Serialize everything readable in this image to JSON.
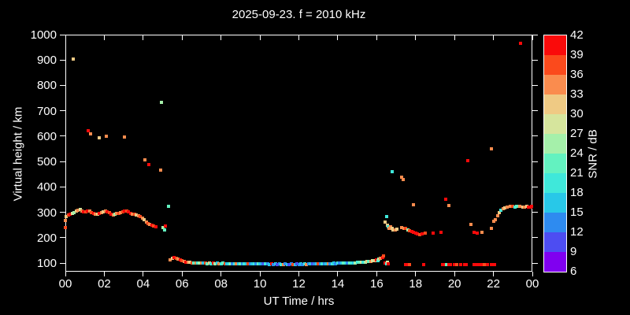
{
  "title": "2025-09-23. f = 2010 kHz",
  "chart_data": {
    "type": "scatter",
    "title": "2025-09-23. f = 2010 kHz",
    "xlabel": "UT Time / hrs",
    "ylabel": "Virtual height / km",
    "xlim": [
      0,
      24
    ],
    "ylim": [
      66,
      1000
    ],
    "grid": false,
    "background_color": "#000000",
    "axis_color": "#ffffff",
    "x_ticks": {
      "values": [
        0,
        2,
        4,
        6,
        8,
        10,
        12,
        14,
        16,
        18,
        20,
        22,
        24
      ],
      "labels": [
        "00",
        "02",
        "04",
        "06",
        "08",
        "10",
        "12",
        "14",
        "16",
        "18",
        "20",
        "22",
        "00"
      ]
    },
    "y_ticks": {
      "values": [
        100,
        200,
        300,
        400,
        500,
        600,
        700,
        800,
        900,
        1000
      ],
      "labels": [
        "100",
        "200",
        "300",
        "400",
        "500",
        "600",
        "700",
        "800",
        "900",
        "1000"
      ]
    },
    "colorbar": {
      "label": "SNR / dB",
      "tick_values": [
        6,
        9,
        12,
        15,
        18,
        21,
        24,
        27,
        30,
        33,
        36,
        39,
        42
      ],
      "bin_colors": [
        "#8000f0",
        "#4d4df2",
        "#2e8bf0",
        "#28c8e8",
        "#3fe8da",
        "#63f2c0",
        "#a5f0aa",
        "#d6e59d",
        "#efca84",
        "#fa8c4e",
        "#fb4a1c",
        "#fa0a0a"
      ]
    },
    "point_format": "[ut_hours, virtual_height_km, snr_bin_index (0 = 6-9 dB ... 11 = 39-42 dB)]",
    "points": [
      [
        0.0,
        240,
        10
      ],
      [
        0.02,
        268,
        9
      ],
      [
        0.05,
        283,
        8
      ],
      [
        0.15,
        288,
        10
      ],
      [
        0.25,
        291,
        11
      ],
      [
        0.35,
        295,
        7
      ],
      [
        0.45,
        300,
        6
      ],
      [
        0.55,
        304,
        8
      ],
      [
        0.65,
        308,
        9
      ],
      [
        0.75,
        310,
        7
      ],
      [
        0.85,
        306,
        9
      ],
      [
        0.95,
        302,
        11
      ],
      [
        1.05,
        303,
        10
      ],
      [
        1.15,
        306,
        11
      ],
      [
        1.25,
        304,
        9
      ],
      [
        1.35,
        299,
        10
      ],
      [
        1.45,
        295,
        11
      ],
      [
        1.55,
        293,
        9
      ],
      [
        1.65,
        294,
        8
      ],
      [
        1.75,
        297,
        11
      ],
      [
        1.85,
        300,
        9
      ],
      [
        1.95,
        303,
        8
      ],
      [
        2.05,
        304,
        9
      ],
      [
        2.15,
        303,
        11
      ],
      [
        2.25,
        298,
        10
      ],
      [
        2.35,
        292,
        11
      ],
      [
        2.45,
        290,
        9
      ],
      [
        2.55,
        292,
        6
      ],
      [
        2.65,
        295,
        9
      ],
      [
        2.75,
        297,
        10
      ],
      [
        2.85,
        300,
        9
      ],
      [
        2.95,
        303,
        10
      ],
      [
        3.05,
        305,
        11
      ],
      [
        3.15,
        304,
        10
      ],
      [
        3.25,
        301,
        11
      ],
      [
        3.35,
        297,
        11
      ],
      [
        3.45,
        294,
        9
      ],
      [
        3.55,
        291,
        10
      ],
      [
        3.65,
        289,
        8
      ],
      [
        3.75,
        287,
        9
      ],
      [
        3.85,
        284,
        10
      ],
      [
        3.95,
        278,
        9
      ],
      [
        4.05,
        270,
        8
      ],
      [
        4.15,
        263,
        9
      ],
      [
        4.25,
        256,
        10
      ],
      [
        4.35,
        251,
        9
      ],
      [
        4.45,
        248,
        11
      ],
      [
        4.55,
        246,
        10
      ],
      [
        4.65,
        243,
        11
      ],
      [
        5.0,
        240,
        6
      ],
      [
        5.08,
        230,
        5
      ],
      [
        5.15,
        247,
        11
      ],
      [
        0.42,
        905,
        8
      ],
      [
        1.18,
        620,
        11
      ],
      [
        1.3,
        610,
        9
      ],
      [
        1.75,
        592,
        8
      ],
      [
        2.12,
        600,
        9
      ],
      [
        3.05,
        596,
        9
      ],
      [
        4.1,
        507,
        9
      ],
      [
        4.3,
        488,
        11
      ],
      [
        4.88,
        466,
        9
      ],
      [
        4.95,
        733,
        6
      ],
      [
        5.3,
        323,
        5
      ],
      [
        5.4,
        112,
        9
      ],
      [
        5.5,
        118,
        8
      ],
      [
        5.6,
        122,
        11
      ],
      [
        5.7,
        119,
        10
      ],
      [
        5.8,
        115,
        9
      ],
      [
        5.9,
        111,
        11
      ],
      [
        6.0,
        108,
        10
      ],
      [
        6.1,
        106,
        9
      ],
      [
        6.2,
        104,
        11
      ],
      [
        6.3,
        103,
        9
      ],
      [
        6.4,
        102,
        8
      ],
      [
        6.5,
        101,
        10
      ],
      [
        6.6,
        100,
        5
      ],
      [
        6.7,
        100,
        9
      ],
      [
        6.8,
        99,
        4
      ],
      [
        6.9,
        100,
        6
      ],
      [
        7.0,
        99,
        9
      ],
      [
        7.1,
        100,
        3
      ],
      [
        7.2,
        99,
        10
      ],
      [
        7.3,
        98,
        5
      ],
      [
        7.4,
        99,
        8
      ],
      [
        7.5,
        98,
        4
      ],
      [
        7.6,
        99,
        11
      ],
      [
        7.7,
        98,
        6
      ],
      [
        7.8,
        99,
        3
      ],
      [
        7.9,
        98,
        9
      ],
      [
        8.0,
        98,
        4
      ],
      [
        8.1,
        99,
        5
      ],
      [
        8.2,
        98,
        10
      ],
      [
        8.3,
        98,
        3
      ],
      [
        8.4,
        97,
        4
      ],
      [
        8.5,
        98,
        6
      ],
      [
        8.6,
        97,
        2
      ],
      [
        8.7,
        98,
        4
      ],
      [
        8.8,
        97,
        9
      ],
      [
        8.9,
        98,
        3
      ],
      [
        9.0,
        97,
        5
      ],
      [
        9.1,
        97,
        2
      ],
      [
        9.2,
        98,
        4
      ],
      [
        9.3,
        97,
        3
      ],
      [
        9.4,
        97,
        10
      ],
      [
        9.5,
        96,
        2
      ],
      [
        9.6,
        97,
        3
      ],
      [
        9.7,
        96,
        4
      ],
      [
        9.8,
        97,
        2
      ],
      [
        9.9,
        96,
        5
      ],
      [
        10.0,
        96,
        3
      ],
      [
        10.1,
        97,
        2
      ],
      [
        10.2,
        96,
        1
      ],
      [
        10.3,
        96,
        4
      ],
      [
        10.4,
        96,
        2
      ],
      [
        10.5,
        95,
        3
      ],
      [
        10.6,
        96,
        11
      ],
      [
        10.7,
        95,
        2
      ],
      [
        10.8,
        96,
        3
      ],
      [
        10.9,
        95,
        1
      ],
      [
        11.0,
        96,
        2
      ],
      [
        11.1,
        95,
        4
      ],
      [
        11.2,
        95,
        9
      ],
      [
        11.3,
        96,
        2
      ],
      [
        11.4,
        95,
        3
      ],
      [
        11.5,
        95,
        1
      ],
      [
        11.6,
        96,
        2
      ],
      [
        11.7,
        95,
        10
      ],
      [
        11.8,
        95,
        3
      ],
      [
        11.9,
        96,
        1
      ],
      [
        12.0,
        95,
        2
      ],
      [
        12.1,
        96,
        3
      ],
      [
        12.2,
        95,
        2
      ],
      [
        12.3,
        96,
        4
      ],
      [
        12.4,
        95,
        9
      ],
      [
        12.5,
        96,
        2
      ],
      [
        12.6,
        96,
        3
      ],
      [
        12.7,
        97,
        1
      ],
      [
        12.8,
        96,
        2
      ],
      [
        12.9,
        97,
        3
      ],
      [
        13.0,
        96,
        10
      ],
      [
        13.1,
        97,
        2
      ],
      [
        13.2,
        97,
        4
      ],
      [
        13.3,
        98,
        2
      ],
      [
        13.4,
        97,
        3
      ],
      [
        13.5,
        98,
        9
      ],
      [
        13.6,
        98,
        2
      ],
      [
        13.7,
        98,
        4
      ],
      [
        13.8,
        99,
        3
      ],
      [
        13.9,
        98,
        2
      ],
      [
        14.0,
        99,
        4
      ],
      [
        14.1,
        99,
        2
      ],
      [
        14.2,
        100,
        3
      ],
      [
        14.3,
        99,
        5
      ],
      [
        14.4,
        100,
        4
      ],
      [
        14.5,
        100,
        2
      ],
      [
        14.6,
        101,
        5
      ],
      [
        14.7,
        100,
        4
      ],
      [
        14.8,
        101,
        3
      ],
      [
        14.9,
        101,
        6
      ],
      [
        15.0,
        102,
        4
      ],
      [
        15.1,
        102,
        5
      ],
      [
        15.2,
        103,
        7
      ],
      [
        15.3,
        103,
        4
      ],
      [
        15.4,
        104,
        6
      ],
      [
        15.5,
        105,
        8
      ],
      [
        15.6,
        106,
        5
      ],
      [
        15.7,
        107,
        9
      ],
      [
        15.8,
        108,
        7
      ],
      [
        15.9,
        110,
        8
      ],
      [
        16.0,
        112,
        11
      ],
      [
        16.05,
        108,
        4
      ],
      [
        16.1,
        115,
        6
      ],
      [
        16.2,
        118,
        9
      ],
      [
        16.3,
        122,
        11
      ],
      [
        16.35,
        127,
        10
      ],
      [
        16.45,
        262,
        8
      ],
      [
        16.5,
        283,
        4
      ],
      [
        16.55,
        250,
        8
      ],
      [
        16.6,
        242,
        4
      ],
      [
        16.65,
        236,
        9
      ],
      [
        16.7,
        244,
        9
      ],
      [
        16.78,
        238,
        8
      ],
      [
        16.85,
        232,
        8
      ],
      [
        16.95,
        230,
        9
      ],
      [
        17.05,
        233,
        8
      ],
      [
        16.8,
        460,
        4
      ],
      [
        17.3,
        437,
        9
      ],
      [
        17.36,
        430,
        9
      ],
      [
        17.9,
        330,
        9
      ],
      [
        19.7,
        327,
        9
      ],
      [
        17.3,
        241,
        9
      ],
      [
        17.4,
        238,
        9
      ],
      [
        17.5,
        236,
        10
      ],
      [
        17.6,
        232,
        6
      ],
      [
        17.7,
        228,
        10
      ],
      [
        17.8,
        224,
        11
      ],
      [
        17.9,
        221,
        11
      ],
      [
        18.0,
        218,
        11
      ],
      [
        18.1,
        215,
        11
      ],
      [
        18.2,
        213,
        10
      ],
      [
        18.35,
        214,
        11
      ],
      [
        18.5,
        217,
        10
      ],
      [
        18.9,
        218,
        11
      ],
      [
        19.3,
        220,
        11
      ],
      [
        19.55,
        351,
        11
      ],
      [
        20.7,
        505,
        11
      ],
      [
        21.9,
        550,
        9
      ],
      [
        20.85,
        252,
        9
      ],
      [
        21.0,
        220,
        11
      ],
      [
        21.15,
        218,
        11
      ],
      [
        21.4,
        221,
        9
      ],
      [
        21.9,
        237,
        9
      ],
      [
        22.0,
        264,
        9
      ],
      [
        22.1,
        272,
        9
      ],
      [
        22.2,
        286,
        9
      ],
      [
        22.3,
        298,
        8
      ],
      [
        22.4,
        308,
        4
      ],
      [
        22.5,
        314,
        9
      ],
      [
        22.6,
        318,
        8
      ],
      [
        22.7,
        320,
        9
      ],
      [
        22.85,
        322,
        9
      ],
      [
        23.0,
        322,
        10
      ],
      [
        23.1,
        320,
        4
      ],
      [
        23.2,
        322,
        5
      ],
      [
        23.35,
        323,
        9
      ],
      [
        23.5,
        321,
        8
      ],
      [
        23.6,
        320,
        9
      ],
      [
        23.7,
        322,
        8
      ],
      [
        23.8,
        320,
        11
      ],
      [
        23.9,
        319,
        11
      ],
      [
        23.97,
        322,
        11
      ],
      [
        23.4,
        965,
        11
      ],
      [
        16.45,
        100,
        11
      ],
      [
        16.5,
        98,
        4
      ],
      [
        16.55,
        102,
        7
      ],
      [
        16.6,
        97,
        11
      ],
      [
        17.5,
        94,
        11
      ],
      [
        17.6,
        94,
        11
      ],
      [
        17.7,
        95,
        10
      ],
      [
        18.4,
        94,
        11
      ],
      [
        19.4,
        95,
        11
      ],
      [
        19.5,
        93,
        11
      ],
      [
        19.6,
        94,
        5
      ],
      [
        19.7,
        93,
        11
      ],
      [
        19.8,
        94,
        11
      ],
      [
        20.0,
        93,
        11
      ],
      [
        20.1,
        94,
        10
      ],
      [
        20.3,
        94,
        11
      ],
      [
        20.5,
        93,
        11
      ],
      [
        20.6,
        94,
        11
      ],
      [
        21.0,
        93,
        11
      ],
      [
        21.1,
        94,
        11
      ],
      [
        21.25,
        93,
        11
      ],
      [
        21.4,
        94,
        11
      ],
      [
        21.55,
        93,
        10
      ],
      [
        21.7,
        94,
        11
      ],
      [
        21.9,
        93,
        11
      ],
      [
        22.05,
        94,
        11
      ]
    ]
  }
}
